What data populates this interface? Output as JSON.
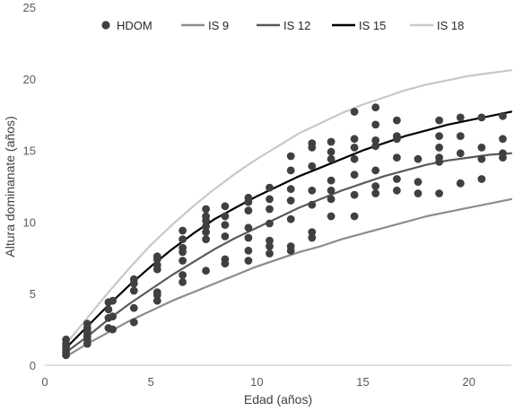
{
  "chart_data": {
    "type": "scatter",
    "xlabel": "Edad (años)",
    "ylabel": "Altura dominanate (años)",
    "xlim": [
      0,
      22
    ],
    "ylim": [
      0,
      25
    ],
    "x_ticks": [
      0,
      5,
      10,
      15,
      20
    ],
    "y_ticks": [
      0,
      5,
      10,
      15,
      20,
      25
    ],
    "grid": false,
    "legend_position": "top",
    "legend": [
      {
        "label": "HDOM",
        "kind": "marker",
        "color": "#404040"
      },
      {
        "label": "IS  9",
        "kind": "line",
        "color": "#8c8c8c"
      },
      {
        "label": "IS 12",
        "kind": "line",
        "color": "#5a5a5a"
      },
      {
        "label": "IS  15",
        "kind": "line",
        "color": "#000000"
      },
      {
        "label": "IS  18",
        "kind": "line",
        "color": "#c8c8c8"
      }
    ],
    "curves": [
      {
        "key": "is9",
        "color": "#8c8c8c",
        "x": [
          1,
          2,
          3,
          4,
          5,
          6,
          7,
          8,
          9,
          10,
          11,
          12,
          13,
          14,
          15,
          16,
          17,
          18,
          19,
          20,
          21,
          22
        ],
        "y": [
          0.6,
          1.5,
          2.3,
          3.1,
          3.8,
          4.5,
          5.1,
          5.7,
          6.3,
          6.9,
          7.4,
          7.9,
          8.3,
          8.8,
          9.2,
          9.6,
          10.0,
          10.4,
          10.7,
          11.0,
          11.3,
          11.6
        ]
      },
      {
        "key": "is12",
        "color": "#5a5a5a",
        "x": [
          1,
          2,
          3,
          4,
          5,
          6,
          7,
          8,
          9,
          10,
          11,
          12,
          13,
          14,
          15,
          16,
          17,
          18,
          19,
          20,
          21,
          22
        ],
        "y": [
          0.9,
          2.0,
          3.2,
          4.3,
          5.3,
          6.3,
          7.2,
          8.1,
          8.9,
          9.6,
          10.3,
          11.0,
          11.6,
          12.2,
          12.7,
          13.2,
          13.6,
          14.0,
          14.3,
          14.5,
          14.7,
          14.8
        ]
      },
      {
        "key": "is15",
        "color": "#000000",
        "x": [
          1,
          2,
          3,
          4,
          5,
          6,
          7,
          8,
          9,
          10,
          11,
          12,
          13,
          14,
          15,
          16,
          17,
          18,
          19,
          20,
          21,
          22
        ],
        "y": [
          1.2,
          2.7,
          4.2,
          5.6,
          6.9,
          8.1,
          9.2,
          10.2,
          11.0,
          11.8,
          12.5,
          13.2,
          13.8,
          14.4,
          15.0,
          15.5,
          16.0,
          16.4,
          16.8,
          17.1,
          17.4,
          17.7
        ]
      },
      {
        "key": "is18",
        "color": "#c8c8c8",
        "x": [
          1,
          2,
          3,
          4,
          5,
          6,
          7,
          8,
          9,
          10,
          11,
          12,
          13,
          14,
          15,
          16,
          17,
          18,
          19,
          20,
          21,
          22
        ],
        "y": [
          1.5,
          3.3,
          5.1,
          6.8,
          8.4,
          9.8,
          11.1,
          12.3,
          13.4,
          14.4,
          15.3,
          16.2,
          16.9,
          17.6,
          18.2,
          18.7,
          19.2,
          19.6,
          19.9,
          20.2,
          20.4,
          20.6
        ]
      }
    ],
    "points": {
      "name": "HDOM",
      "x": [
        1.0,
        1.0,
        1.0,
        1.0,
        1.0,
        1.0,
        2.0,
        2.0,
        2.0,
        2.0,
        2.0,
        2.0,
        2.0,
        3.0,
        3.0,
        3.0,
        3.0,
        3.2,
        3.2,
        3.2,
        4.2,
        4.2,
        4.2,
        4.2,
        4.2,
        5.3,
        5.3,
        5.3,
        5.3,
        5.3,
        5.3,
        5.3,
        6.5,
        6.5,
        6.5,
        6.5,
        6.5,
        6.5,
        6.5,
        7.6,
        7.6,
        7.6,
        7.6,
        7.6,
        7.6,
        7.6,
        8.5,
        8.5,
        8.5,
        8.5,
        8.5,
        8.5,
        9.6,
        9.6,
        9.6,
        9.6,
        9.6,
        9.6,
        9.6,
        10.6,
        10.6,
        10.6,
        10.6,
        10.6,
        10.6,
        10.6,
        11.6,
        11.6,
        11.6,
        11.6,
        11.6,
        11.6,
        11.6,
        12.6,
        12.6,
        12.6,
        12.6,
        12.6,
        12.6,
        12.6,
        13.5,
        13.5,
        13.5,
        13.5,
        13.5,
        13.5,
        13.5,
        14.6,
        14.6,
        14.6,
        14.6,
        14.6,
        14.6,
        14.6,
        15.6,
        15.6,
        15.6,
        15.6,
        15.6,
        15.6,
        15.6,
        16.6,
        16.6,
        16.6,
        16.6,
        16.6,
        16.6,
        17.6,
        17.6,
        17.6,
        18.6,
        18.6,
        18.6,
        18.6,
        18.6,
        18.6,
        19.6,
        19.6,
        19.6,
        19.6,
        19.6,
        20.6,
        20.6,
        20.6,
        20.6,
        21.6,
        21.6,
        21.6,
        21.6
      ],
      "y": [
        0.7,
        0.9,
        1.1,
        1.3,
        1.5,
        1.8,
        1.5,
        1.8,
        2.0,
        2.2,
        2.4,
        2.6,
        2.9,
        2.6,
        3.3,
        3.9,
        4.4,
        2.5,
        3.4,
        4.5,
        3.0,
        4.0,
        5.2,
        5.7,
        6.0,
        4.5,
        4.9,
        5.1,
        6.7,
        7.0,
        7.4,
        7.6,
        5.8,
        6.3,
        7.3,
        7.9,
        8.2,
        8.8,
        9.4,
        6.6,
        8.8,
        9.3,
        9.7,
        10.1,
        10.4,
        10.9,
        7.1,
        7.4,
        9.0,
        9.8,
        10.4,
        11.1,
        7.3,
        8.0,
        8.9,
        9.6,
        10.8,
        11.4,
        11.7,
        7.8,
        8.3,
        8.7,
        9.9,
        10.9,
        11.6,
        12.4,
        8.0,
        8.3,
        10.2,
        11.5,
        12.3,
        13.6,
        14.6,
        8.9,
        9.3,
        11.2,
        12.2,
        13.9,
        15.2,
        15.5,
        10.4,
        11.6,
        12.2,
        12.9,
        14.4,
        14.9,
        15.6,
        10.4,
        11.9,
        13.3,
        14.4,
        15.2,
        15.8,
        17.7,
        12.0,
        12.5,
        13.6,
        15.3,
        15.7,
        16.8,
        18.0,
        12.2,
        13.0,
        14.5,
        15.8,
        16.0,
        17.1,
        12.0,
        12.8,
        14.4,
        12.0,
        14.2,
        14.5,
        15.2,
        16.0,
        17.1,
        12.7,
        12.7,
        14.8,
        16.0,
        17.3,
        13.0,
        14.4,
        15.2,
        17.3,
        14.5,
        14.8,
        15.8,
        17.4
      ]
    }
  }
}
